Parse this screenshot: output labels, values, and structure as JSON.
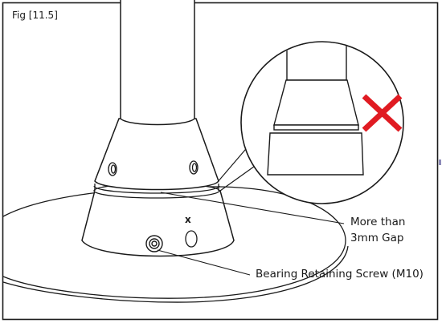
{
  "figure": {
    "label": "Fig [11.5]",
    "callout_gap_line1": "More than",
    "callout_gap_line2": "3mm Gap",
    "callout_screw": "Bearing Retaining Screw (M10)",
    "hole_mark": "x",
    "wrong_mark_icon": "red-cross-icon"
  },
  "colors": {
    "line": "#1a1a1a",
    "wrong_mark": "#e01b22",
    "side_tab": "#8c8ab8"
  }
}
